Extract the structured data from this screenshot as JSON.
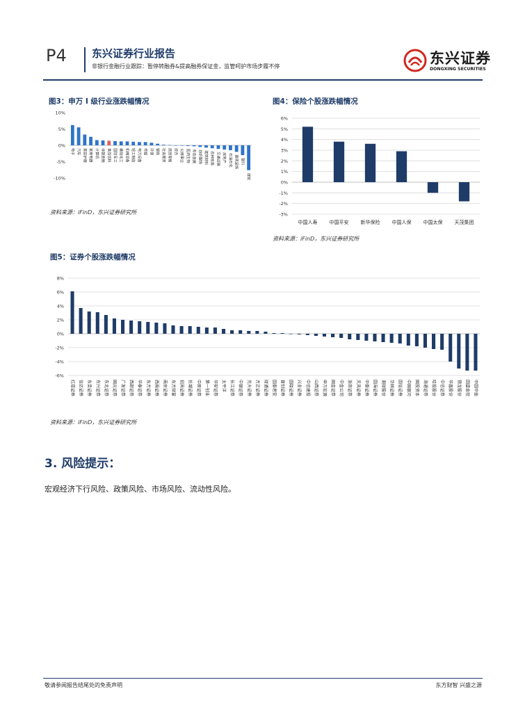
{
  "header": {
    "page_no": "P4",
    "title": "东兴证券行业报告",
    "subtitle": "非银行金融行业跟踪：暂停转融券&提高融券保证金，监管呵护市场步履不停",
    "logo_cn": "东兴证券",
    "logo_en": "DONGXING SECURITIES",
    "logo_color": "#d0281f"
  },
  "fig3": {
    "title": "图3：申万 I 级行业涨跌幅情况",
    "source": "资料来源：iFinD，东兴证券研究所"
  },
  "fig4": {
    "title": "图4：保险个股涨跌幅情况",
    "source": "资料来源：iFinD，东兴证券研究所"
  },
  "fig5": {
    "title": "图5：证券个股涨跌幅情况",
    "source": "资料来源：iFinD，东兴证券研究所"
  },
  "section": {
    "heading": "3. 风险提示：",
    "body": "宏观经济下行风险、政策风险、市场风险、流动性风险。"
  },
  "footer": {
    "left": "敬请参阅报告结尾处的免责声明",
    "right": "东方财智 兴盛之源"
  },
  "chart_data": [
    {
      "type": "bar",
      "color": "#2e74c9",
      "highlight_color": "#e06060",
      "highlight_index": 6,
      "categories": [
        "电子",
        "汽车",
        "美容护理",
        "家用电器",
        "计算机",
        "非银金融",
        "食品饮料",
        "国防军工",
        "基础化工",
        "机械设备",
        "轻工制造",
        "电力设备",
        "传媒",
        "环保",
        "钢铁",
        "社会服务",
        "商贸零售",
        "综合",
        "公用事业",
        "医药生物",
        "有色金属",
        "纺织服饰",
        "建筑材料",
        "农林牧渔",
        "交通运输",
        "房地产",
        "石油石化",
        "建筑装饰",
        "银行",
        "煤炭"
      ],
      "values": [
        6.2,
        5.5,
        3.3,
        2.6,
        1.6,
        1.5,
        1.4,
        1.3,
        1.2,
        1.2,
        1.1,
        1.0,
        1.0,
        0.8,
        0.5,
        0.2,
        0.1,
        0.0,
        -0.1,
        -0.2,
        -0.3,
        -0.5,
        -0.7,
        -0.9,
        -1.1,
        -1.3,
        -1.5,
        -2.0,
        -3.0,
        -7.6
      ],
      "ylim": [
        -10,
        10
      ],
      "yticks": [
        "10%",
        "5%",
        "0%",
        "-5%",
        "-10%"
      ]
    },
    {
      "type": "bar",
      "color": "#1f3c68",
      "categories": [
        "中国人寿",
        "中国平安",
        "新华保险",
        "中国人保",
        "中国太保",
        "天茂集团"
      ],
      "values": [
        5.2,
        3.8,
        3.6,
        2.9,
        -1.0,
        -1.8
      ],
      "ylim": [
        -3,
        6
      ],
      "yticks": [
        "6%",
        "5%",
        "4%",
        "3%",
        "2%",
        "1%",
        "0%",
        "-1%",
        "-2%",
        "-3%"
      ]
    },
    {
      "type": "bar",
      "color": "#1f3c68",
      "categories": [
        "红塔证券",
        "信达证券",
        "东吴证券",
        "东兴证券",
        "东北证券",
        "国元证券",
        "广发证券",
        "西部证券",
        "华泰证券",
        "东方证券",
        "西南证券",
        "南京证券",
        "东方财富",
        "招商证券",
        "长城证券",
        "中原证券",
        "第一创业",
        "华安证券",
        "太平洋",
        "长江证券",
        "中银证券",
        "光大证券",
        "方正证券",
        "财通证券",
        "国泰君安",
        "首创证券",
        "国联证券",
        "兴业证券",
        "中信建投",
        "山西证券",
        "申万宏源",
        "国金证券",
        "中金公司",
        "浙商证券",
        "天风证券",
        "中泰证券",
        "国海证券",
        "湘财股份",
        "华林证券",
        "国信证券",
        "中国银河",
        "国投资本",
        "海通证券",
        "哈投股份",
        "中信证券",
        "华鑫股份",
        "锦龙股份",
        "国盛金控",
        "中国中金"
      ],
      "values": [
        6.1,
        3.7,
        3.2,
        3.1,
        2.7,
        2.2,
        2.0,
        1.9,
        1.8,
        1.7,
        1.6,
        1.5,
        1.2,
        1.1,
        1.1,
        1.0,
        0.9,
        0.9,
        0.7,
        0.5,
        0.5,
        0.4,
        0.4,
        0.3,
        0.1,
        0.1,
        0.0,
        -0.1,
        -0.2,
        -0.3,
        -0.4,
        -0.5,
        -0.6,
        -0.8,
        -0.9,
        -1.0,
        -1.1,
        -1.2,
        -1.3,
        -1.4,
        -1.7,
        -1.8,
        -2.0,
        -2.2,
        -2.3,
        -4.0,
        -5.0,
        -5.3,
        -5.3
      ],
      "ylim": [
        -6,
        8
      ],
      "yticks": [
        "8%",
        "6%",
        "4%",
        "2%",
        "0%",
        "-2%",
        "-4%",
        "-6%"
      ]
    }
  ]
}
